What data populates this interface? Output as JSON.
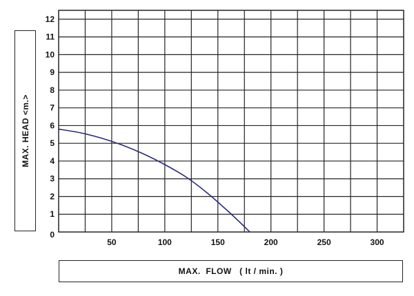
{
  "chart_data": {
    "type": "line",
    "title": "",
    "xlabel": "MAX.  FLOW   ( lt / min. )",
    "ylabel": "MAX.  HEAD  <m.>",
    "xlim": [
      0,
      325
    ],
    "ylim": [
      0,
      12.5
    ],
    "x_ticks": [
      0,
      50,
      100,
      150,
      200,
      250,
      300
    ],
    "y_ticks": [
      0,
      1,
      2,
      3,
      4,
      5,
      6,
      7,
      8,
      9,
      10,
      11,
      12
    ],
    "x_tick_labels": [
      "0",
      "50",
      "100",
      "150",
      "200",
      "250",
      "300"
    ],
    "y_tick_labels": [
      "1",
      "2",
      "3",
      "4",
      "5",
      "6",
      "7",
      "8",
      "9",
      "10",
      "11",
      "12"
    ],
    "origin_label": "0",
    "grid": true,
    "series": [
      {
        "color": "#2a2a7a",
        "x": [
          0,
          20,
          40,
          60,
          80,
          100,
          120,
          140,
          160,
          175,
          180
        ],
        "y": [
          5.8,
          5.6,
          5.3,
          4.9,
          4.4,
          3.8,
          3.1,
          2.2,
          1.15,
          0.3,
          0
        ]
      }
    ]
  }
}
